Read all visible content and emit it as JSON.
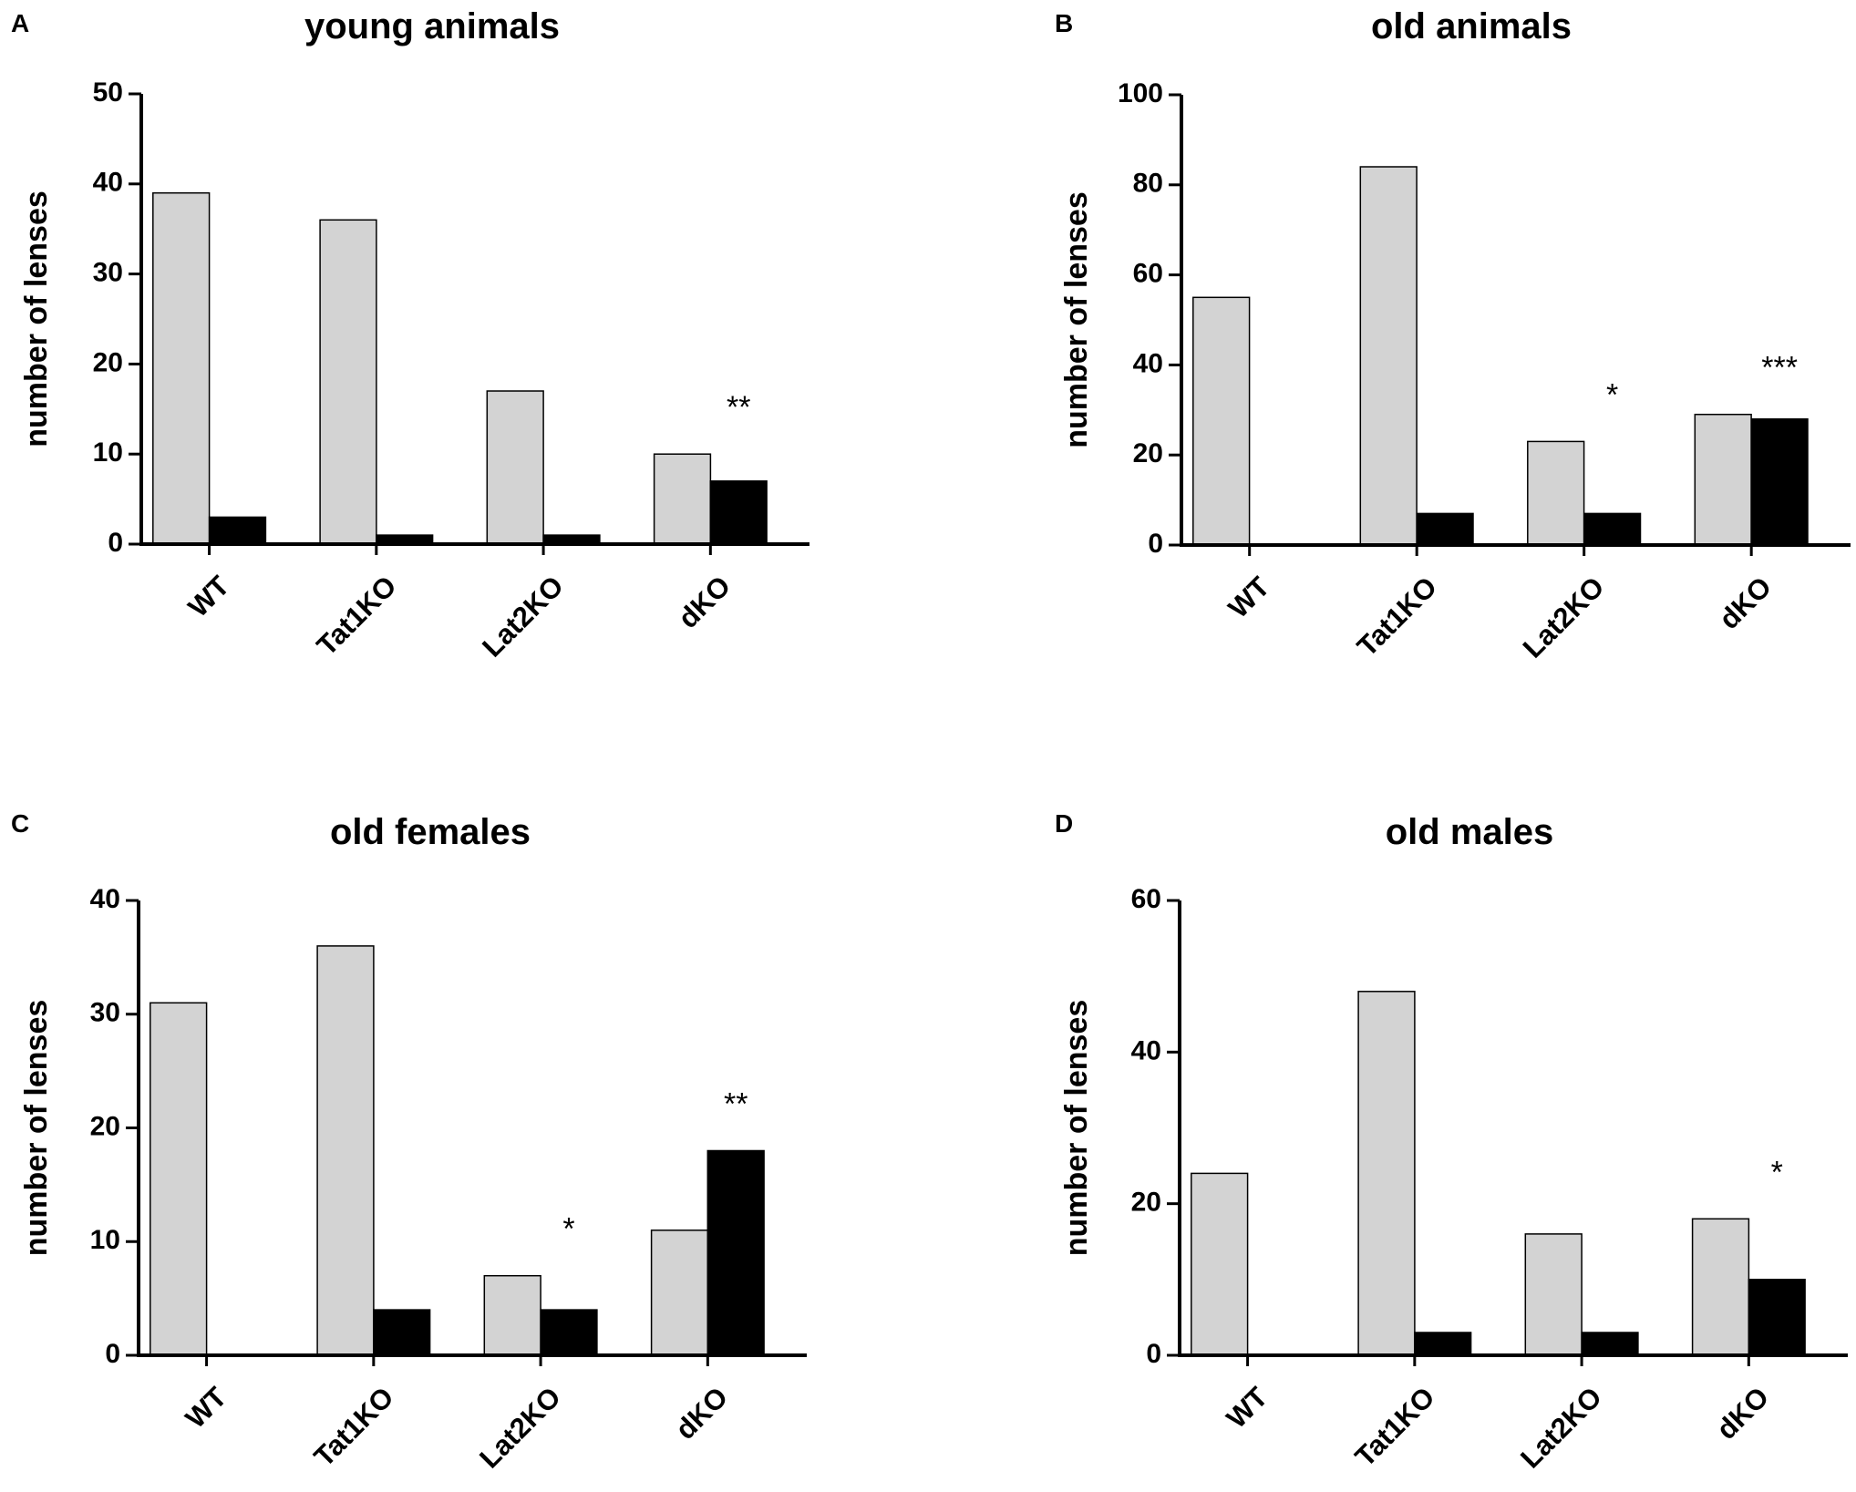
{
  "chart_data": [
    {
      "type": "bar",
      "panel": "A",
      "title": "young animals",
      "ylabel": "number of lenses",
      "xlabel": "",
      "ylim": [
        0,
        50
      ],
      "yticks": [
        0,
        10,
        20,
        30,
        40,
        50
      ],
      "categories": [
        "WT",
        "Tat1KO",
        "Lat2KO",
        "dKO"
      ],
      "series": [
        {
          "name": "grey",
          "color": "#d3d3d3",
          "values": [
            39,
            36,
            17,
            10
          ]
        },
        {
          "name": "black",
          "color": "#000000",
          "values": [
            3,
            1,
            1,
            7
          ]
        }
      ],
      "annotations": [
        {
          "category": "dKO",
          "text": "**"
        }
      ]
    },
    {
      "type": "bar",
      "panel": "B",
      "title": "old animals",
      "ylabel": "number of lenses",
      "xlabel": "",
      "ylim": [
        0,
        100
      ],
      "yticks": [
        0,
        20,
        40,
        60,
        80,
        100
      ],
      "categories": [
        "WT",
        "Tat1KO",
        "Lat2KO",
        "dKO"
      ],
      "series": [
        {
          "name": "grey",
          "color": "#d3d3d3",
          "values": [
            55,
            84,
            23,
            29
          ]
        },
        {
          "name": "black",
          "color": "#000000",
          "values": [
            0,
            7,
            7,
            28
          ]
        }
      ],
      "annotations": [
        {
          "category": "Lat2KO",
          "text": "*"
        },
        {
          "category": "dKO",
          "text": "***"
        }
      ]
    },
    {
      "type": "bar",
      "panel": "C",
      "title": "old females",
      "ylabel": "number of lenses",
      "xlabel": "",
      "ylim": [
        0,
        40
      ],
      "yticks": [
        0,
        10,
        20,
        30,
        40
      ],
      "categories": [
        "WT",
        "Tat1KO",
        "Lat2KO",
        "dKO"
      ],
      "series": [
        {
          "name": "grey",
          "color": "#d3d3d3",
          "values": [
            31,
            36,
            7,
            11
          ]
        },
        {
          "name": "black",
          "color": "#000000",
          "values": [
            0,
            4,
            4,
            18
          ]
        }
      ],
      "annotations": [
        {
          "category": "Lat2KO",
          "text": "*"
        },
        {
          "category": "dKO",
          "text": "**"
        }
      ]
    },
    {
      "type": "bar",
      "panel": "D",
      "title": "old males",
      "ylabel": "number of lenses",
      "xlabel": "",
      "ylim": [
        0,
        60
      ],
      "yticks": [
        0,
        20,
        40,
        60
      ],
      "categories": [
        "WT",
        "Tat1KO",
        "Lat2KO",
        "dKO"
      ],
      "series": [
        {
          "name": "grey",
          "color": "#d3d3d3",
          "values": [
            24,
            48,
            16,
            18
          ]
        },
        {
          "name": "black",
          "color": "#000000",
          "values": [
            0,
            3,
            3,
            10
          ]
        }
      ],
      "annotations": [
        {
          "category": "dKO",
          "text": "*"
        }
      ]
    }
  ]
}
